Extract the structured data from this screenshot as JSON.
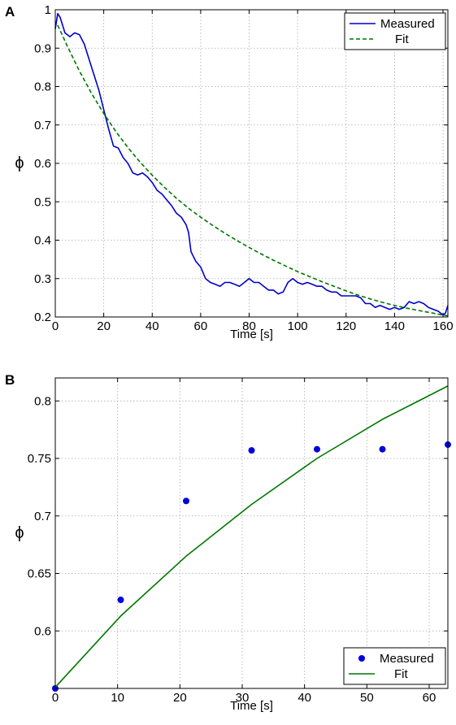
{
  "chart_data": [
    {
      "panel": "A",
      "type": "line",
      "xlabel": "Time [s]",
      "ylabel": "ϕ",
      "xlim": [
        0,
        162
      ],
      "ylim": [
        0.2,
        1.0
      ],
      "xticks": [
        0,
        20,
        40,
        60,
        80,
        100,
        120,
        140,
        160
      ],
      "yticks": [
        0.2,
        0.3,
        0.4,
        0.5,
        0.6,
        0.7,
        0.8,
        0.9,
        1.0
      ],
      "xtick_labels": [
        "0",
        "20",
        "40",
        "60",
        "80",
        "100",
        "120",
        "140",
        "160"
      ],
      "ytick_labels": [
        "0.2",
        "0.3",
        "0.4",
        "0.5",
        "0.6",
        "0.7",
        "0.8",
        "0.9",
        "1"
      ],
      "grid": true,
      "legend": "top-right",
      "series": [
        {
          "name": "Measured",
          "style": "solid",
          "color": "#0000cc",
          "x": [
            0,
            1,
            2,
            4,
            6,
            8,
            10,
            12,
            14,
            16,
            18,
            20,
            22,
            24,
            26,
            28,
            30,
            32,
            34,
            36,
            38,
            40,
            42,
            44,
            46,
            48,
            50,
            52,
            54,
            55,
            56,
            58,
            60,
            62,
            64,
            66,
            68,
            70,
            72,
            74,
            76,
            78,
            80,
            82,
            84,
            86,
            88,
            90,
            92,
            94,
            96,
            98,
            100,
            102,
            104,
            106,
            108,
            110,
            112,
            114,
            116,
            118,
            120,
            122,
            124,
            126,
            128,
            130,
            132,
            134,
            136,
            138,
            140,
            142,
            144,
            146,
            148,
            150,
            152,
            154,
            156,
            158,
            160,
            161,
            162
          ],
          "y": [
            0.95,
            0.99,
            0.98,
            0.94,
            0.93,
            0.94,
            0.935,
            0.91,
            0.87,
            0.83,
            0.79,
            0.74,
            0.69,
            0.645,
            0.64,
            0.615,
            0.6,
            0.575,
            0.57,
            0.575,
            0.565,
            0.55,
            0.53,
            0.52,
            0.505,
            0.49,
            0.47,
            0.46,
            0.44,
            0.42,
            0.37,
            0.345,
            0.33,
            0.3,
            0.29,
            0.285,
            0.28,
            0.29,
            0.29,
            0.285,
            0.28,
            0.29,
            0.3,
            0.29,
            0.29,
            0.28,
            0.27,
            0.27,
            0.26,
            0.265,
            0.29,
            0.3,
            0.29,
            0.285,
            0.29,
            0.285,
            0.28,
            0.28,
            0.27,
            0.265,
            0.265,
            0.255,
            0.255,
            0.255,
            0.255,
            0.25,
            0.235,
            0.235,
            0.225,
            0.23,
            0.225,
            0.22,
            0.225,
            0.22,
            0.225,
            0.24,
            0.235,
            0.24,
            0.235,
            0.225,
            0.22,
            0.215,
            0.205,
            0.21,
            0.23
          ]
        },
        {
          "name": "Fit",
          "style": "dashed",
          "color": "#007700",
          "x": [
            1,
            5,
            10,
            15,
            20,
            25,
            30,
            35,
            40,
            45,
            50,
            55,
            60,
            65,
            70,
            75,
            80,
            85,
            90,
            95,
            100,
            105,
            110,
            115,
            120,
            125,
            130,
            135,
            140,
            145,
            150,
            155,
            160,
            162
          ],
          "y": [
            0.96,
            0.905,
            0.84,
            0.782,
            0.73,
            0.683,
            0.641,
            0.603,
            0.569,
            0.538,
            0.509,
            0.483,
            0.46,
            0.438,
            0.418,
            0.399,
            0.381,
            0.364,
            0.348,
            0.333,
            0.318,
            0.305,
            0.292,
            0.28,
            0.268,
            0.257,
            0.247,
            0.238,
            0.23,
            0.223,
            0.217,
            0.211,
            0.205,
            0.203
          ]
        }
      ]
    },
    {
      "panel": "B",
      "type": "line",
      "xlabel": "Time [s]",
      "ylabel": "ϕ",
      "xlim": [
        0,
        63
      ],
      "ylim": [
        0.55,
        0.82
      ],
      "xticks": [
        0,
        10,
        20,
        30,
        40,
        50,
        60
      ],
      "yticks": [
        0.6,
        0.65,
        0.7,
        0.75,
        0.8
      ],
      "xtick_labels": [
        "0",
        "10",
        "20",
        "30",
        "40",
        "50",
        "60"
      ],
      "ytick_labels": [
        "0.6",
        "0.65",
        "0.7",
        "0.75",
        "0.8"
      ],
      "grid": true,
      "legend": "bottom-right",
      "series": [
        {
          "name": "Measured",
          "style": "markers",
          "color": "#0000dd",
          "x": [
            0,
            10.5,
            21,
            31.5,
            42,
            52.5,
            63
          ],
          "y": [
            0.55,
            0.627,
            0.713,
            0.757,
            0.758,
            0.758,
            0.762
          ]
        },
        {
          "name": "Fit",
          "style": "solid",
          "color": "#007700",
          "x": [
            0,
            10.5,
            21,
            31.5,
            42,
            52.5,
            63
          ],
          "y": [
            0.551,
            0.613,
            0.665,
            0.71,
            0.75,
            0.784,
            0.813
          ]
        }
      ]
    }
  ]
}
